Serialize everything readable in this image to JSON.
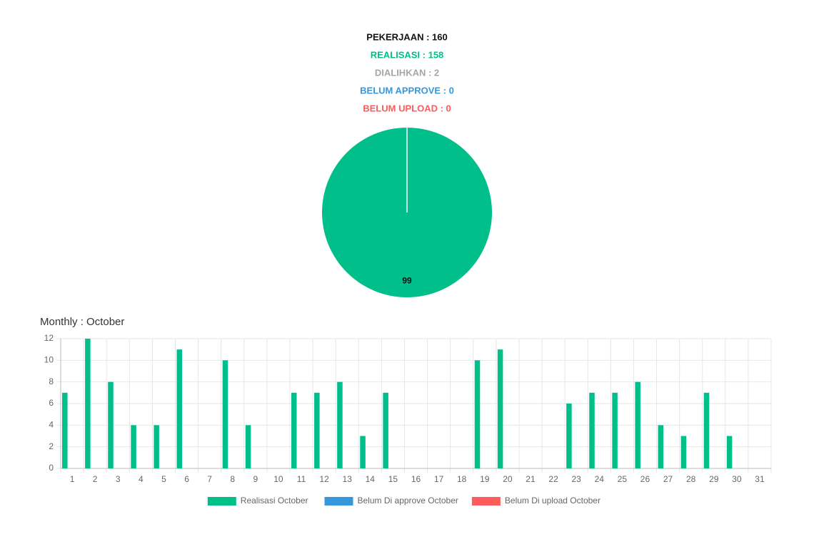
{
  "summary": [
    {
      "text": "PEKERJAAN : 160",
      "color": "#111111"
    },
    {
      "text": "REALISASI : 158",
      "color": "#00bf8a"
    },
    {
      "text": "DIALIHKAN : 2",
      "color": "#a6a6a6"
    },
    {
      "text": "BELUM APPROVE : 0",
      "color": "#3498db"
    },
    {
      "text": "BELUM UPLOAD : 0",
      "color": "#ff5b5b"
    }
  ],
  "chart_data": [
    {
      "type": "pie",
      "values": [
        99
      ],
      "value_labels": [
        "99"
      ],
      "colors": [
        "#00bf8a"
      ]
    },
    {
      "type": "bar",
      "title": "Monthly : October",
      "categories": [
        "1",
        "2",
        "3",
        "4",
        "5",
        "6",
        "7",
        "8",
        "9",
        "10",
        "11",
        "12",
        "13",
        "14",
        "15",
        "16",
        "17",
        "18",
        "19",
        "20",
        "21",
        "22",
        "23",
        "24",
        "25",
        "26",
        "27",
        "28",
        "29",
        "30",
        "31"
      ],
      "series": [
        {
          "name": "Realisasi October",
          "color": "#00bf8a",
          "values": [
            7,
            12,
            8,
            4,
            4,
            11,
            0,
            10,
            4,
            0,
            7,
            7,
            8,
            3,
            7,
            0,
            0,
            0,
            10,
            11,
            0,
            0,
            6,
            7,
            7,
            8,
            4,
            3,
            7,
            3,
            0
          ]
        },
        {
          "name": "Belum Di approve October",
          "color": "#3498db",
          "values": [
            0,
            0,
            0,
            0,
            0,
            0,
            0,
            0,
            0,
            0,
            0,
            0,
            0,
            0,
            0,
            0,
            0,
            0,
            0,
            0,
            0,
            0,
            0,
            0,
            0,
            0,
            0,
            0,
            0,
            0,
            0
          ]
        },
        {
          "name": "Belum Di upload October",
          "color": "#ff5b5b",
          "values": [
            0,
            0,
            0,
            0,
            0,
            0,
            0,
            0,
            0,
            0,
            0,
            0,
            0,
            0,
            0,
            0,
            0,
            0,
            0,
            0,
            0,
            0,
            0,
            0,
            0,
            0,
            0,
            0,
            0,
            0,
            0
          ]
        }
      ],
      "ylim": [
        0,
        12
      ],
      "yticks": [
        0,
        2,
        4,
        6,
        8,
        10,
        12
      ],
      "grid": true,
      "legend": "bottom"
    }
  ]
}
